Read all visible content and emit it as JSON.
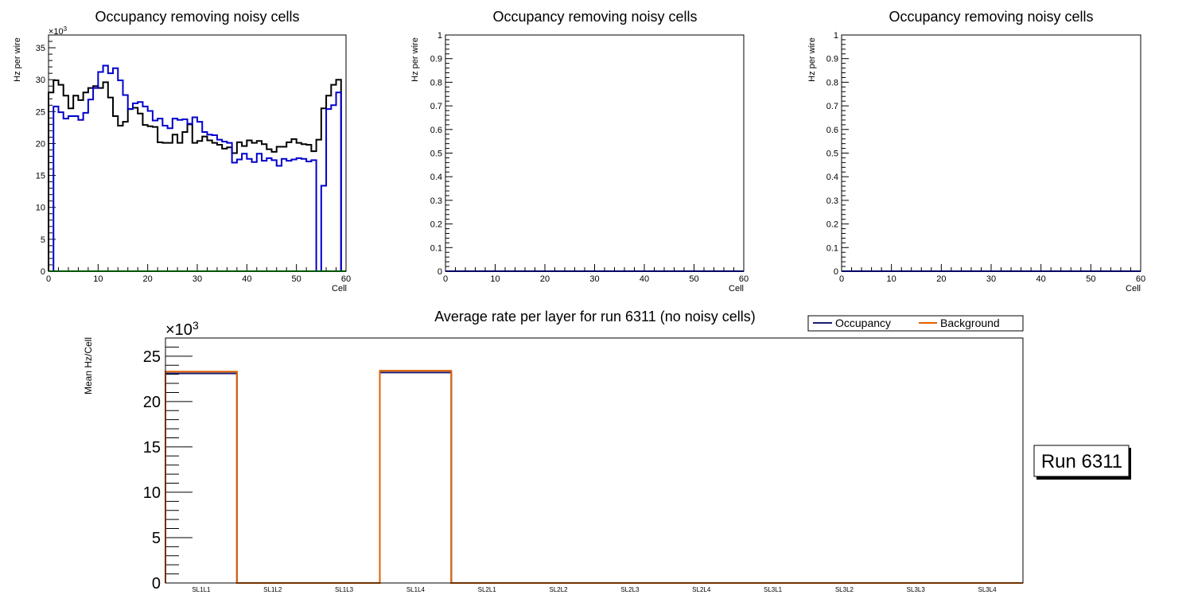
{
  "colors": {
    "black": "#000000",
    "blue": "#0000cc",
    "green": "#00aa00",
    "navy": "#1a1a6e",
    "orange": "#e06000",
    "frame": "#000000"
  },
  "chart_data": [
    {
      "type": "line",
      "name": "top-left-histogram",
      "title": "Occupancy removing noisy cells",
      "xlabel": "Cell",
      "ylabel": "Hz per wire",
      "ylim_display": [
        0,
        37
      ],
      "y_multiplier_label": "×10",
      "y_multiplier_exp": "3",
      "xlim": [
        0,
        60
      ],
      "x_ticks": [
        0,
        10,
        20,
        30,
        40,
        50,
        60
      ],
      "y_ticks": [
        0,
        5,
        10,
        15,
        20,
        25,
        30,
        35
      ],
      "series": [
        {
          "name": "black-series",
          "color": "#000000",
          "bin_edges": [
            0,
            1,
            2,
            3,
            4,
            5,
            6,
            7,
            8,
            9,
            10,
            11,
            12,
            13,
            14,
            15,
            16,
            17,
            18,
            19,
            20,
            21,
            22,
            23,
            24,
            25,
            26,
            27,
            28,
            29,
            30,
            31,
            32,
            33,
            34,
            35,
            36,
            37,
            38,
            39,
            40,
            41,
            42,
            43,
            44,
            45,
            46,
            47,
            48,
            49,
            50,
            51,
            52,
            53,
            54,
            55,
            56,
            57,
            58,
            59,
            60
          ],
          "values": [
            28,
            29.9,
            29.2,
            27.5,
            25.5,
            27.5,
            26.8,
            28,
            28.7,
            29,
            28.7,
            29.6,
            27.2,
            24.3,
            22.8,
            23.4,
            25.4,
            25.6,
            24.7,
            22.9,
            22.7,
            22.6,
            20.2,
            20.1,
            20.1,
            21.4,
            20.1,
            21.8,
            23,
            20.1,
            20.4,
            21.1,
            20.5,
            20.1,
            19.8,
            19.2,
            19.4,
            18.5,
            20.2,
            19.6,
            20.5,
            20.1,
            20.4,
            19.9,
            19.1,
            18.7,
            19.5,
            19.5,
            20.2,
            20.7,
            20.1,
            19.9,
            19.8,
            18.8,
            20.6,
            25.5,
            27.5,
            29.2,
            30,
            0
          ]
        },
        {
          "name": "blue-series",
          "color": "#0000cc",
          "bin_edges": [
            0,
            1,
            2,
            3,
            4,
            5,
            6,
            7,
            8,
            9,
            10,
            11,
            12,
            13,
            14,
            15,
            16,
            17,
            18,
            19,
            20,
            21,
            22,
            23,
            24,
            25,
            26,
            27,
            28,
            29,
            30,
            31,
            32,
            33,
            34,
            35,
            36,
            37,
            38,
            39,
            40,
            41,
            42,
            43,
            44,
            45,
            46,
            47,
            48,
            49,
            50,
            51,
            52,
            53,
            54,
            55,
            56,
            57,
            58,
            59,
            60
          ],
          "values": [
            0,
            25.8,
            24.9,
            23.9,
            24.3,
            24.3,
            23.7,
            24.8,
            26.9,
            28.7,
            31.2,
            32.2,
            31,
            31.8,
            29.9,
            27.6,
            25.4,
            26.3,
            26.5,
            25.8,
            25.1,
            23.6,
            23.9,
            22.8,
            22.4,
            23.9,
            23.7,
            23.8,
            23.1,
            24.1,
            23.4,
            21.8,
            21.4,
            21.3,
            20.6,
            20.3,
            20.1,
            17,
            17.5,
            18.4,
            17.6,
            17.1,
            18.4,
            17.3,
            17.7,
            17.4,
            16.5,
            17.6,
            17.3,
            17.5,
            17.7,
            17.6,
            17.2,
            17.4,
            0,
            13.4,
            25.4,
            26,
            28,
            0
          ]
        },
        {
          "name": "green-series",
          "color": "#00aa00",
          "bin_edges": [
            0,
            60
          ],
          "values": [
            0
          ]
        }
      ]
    },
    {
      "type": "line",
      "name": "top-middle-histogram",
      "title": "Occupancy removing noisy cells",
      "xlabel": "Cell",
      "ylabel": "Hz per wire",
      "xlim": [
        0,
        60
      ],
      "ylim": [
        0,
        1
      ],
      "x_ticks": [
        0,
        10,
        20,
        30,
        40,
        50,
        60
      ],
      "y_ticks": [
        0,
        0.1,
        0.2,
        0.3,
        0.4,
        0.5,
        0.6,
        0.7,
        0.8,
        0.9,
        1
      ],
      "series": [
        {
          "name": "baseline",
          "color": "#0000cc",
          "bin_edges": [
            0,
            60
          ],
          "values": [
            0
          ]
        }
      ]
    },
    {
      "type": "line",
      "name": "top-right-histogram",
      "title": "Occupancy removing noisy cells",
      "xlabel": "Cell",
      "ylabel": "Hz per wire",
      "xlim": [
        0,
        60
      ],
      "ylim": [
        0,
        1
      ],
      "x_ticks": [
        0,
        10,
        20,
        30,
        40,
        50,
        60
      ],
      "y_ticks": [
        0,
        0.1,
        0.2,
        0.3,
        0.4,
        0.5,
        0.6,
        0.7,
        0.8,
        0.9,
        1
      ],
      "series": [
        {
          "name": "baseline",
          "color": "#0000cc",
          "bin_edges": [
            0,
            60
          ],
          "values": [
            0
          ]
        }
      ]
    },
    {
      "type": "bar",
      "name": "average-rate-histogram",
      "title": "Average rate per layer for run 6311 (no noisy cells)",
      "ylabel": "Mean Hz/Cell",
      "y_multiplier_label": "×10",
      "y_multiplier_exp": "3",
      "ylim_display": [
        0,
        27
      ],
      "y_ticks": [
        0,
        5,
        10,
        15,
        20,
        25
      ],
      "categories": [
        "SL1L1",
        "SL1L2",
        "SL1L3",
        "SL1L4",
        "SL2L1",
        "SL2L2",
        "SL2L3",
        "SL2L4",
        "SL3L1",
        "SL3L2",
        "SL3L3",
        "SL3L4"
      ],
      "series": [
        {
          "name": "Occupancy",
          "color": "#1a1a6e",
          "values": [
            23.1,
            0,
            0,
            23.2,
            0,
            0,
            0,
            0,
            0,
            0,
            0,
            0
          ]
        },
        {
          "name": "Background",
          "color": "#e06000",
          "values": [
            23.3,
            0,
            0,
            23.4,
            0,
            0,
            0,
            0,
            0,
            0,
            0,
            0
          ]
        }
      ],
      "legend_position": "top-right"
    }
  ],
  "run_box": {
    "label": "Run 6311"
  }
}
